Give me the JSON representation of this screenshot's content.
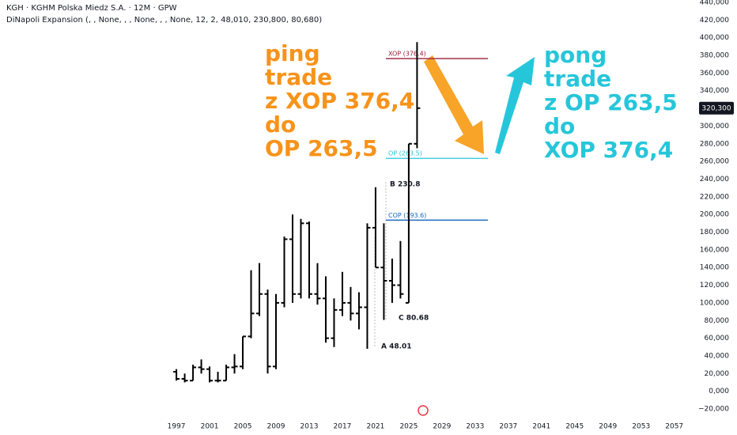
{
  "header": {
    "symbol_line": "KGH · KGHM Polska Miedz S.A. · 12M · GPW",
    "indicator_line": "DiNapoli Expansion (, , None, , , None, , , None, 12, 2, 48,010, 230,800, 80,680)"
  },
  "chart_data": {
    "type": "ohlc",
    "color": "#000000",
    "x": [
      1997,
      1998,
      1999,
      2000,
      2001,
      2002,
      2003,
      2004,
      2005,
      2006,
      2007,
      2008,
      2009,
      2010,
      2011,
      2012,
      2013,
      2014,
      2015,
      2016,
      2017,
      2018,
      2019,
      2020,
      2021,
      2022,
      2023,
      2024,
      2025,
      2026
    ],
    "open": [
      22000,
      14000,
      12000,
      27000,
      25000,
      12000,
      12000,
      27000,
      28000,
      62000,
      88000,
      110000,
      28000,
      100000,
      172000,
      110000,
      190000,
      110000,
      105000,
      60000,
      92000,
      100000,
      88000,
      95000,
      185000,
      140000,
      125000,
      120000,
      100000,
      280000
    ],
    "high": [
      25000,
      20000,
      30000,
      36000,
      28000,
      22000,
      30000,
      42000,
      62000,
      137000,
      145000,
      115000,
      110000,
      175000,
      200000,
      195000,
      192000,
      145000,
      130000,
      105000,
      135000,
      118000,
      112000,
      190000,
      230800,
      190000,
      150000,
      170000,
      280000,
      395000
    ],
    "low": [
      12000,
      10000,
      12000,
      20000,
      10000,
      10000,
      12000,
      20000,
      25000,
      60000,
      85000,
      20000,
      25000,
      95000,
      100000,
      105000,
      105000,
      98000,
      55000,
      50000,
      85000,
      80000,
      70000,
      48010,
      140000,
      80680,
      100000,
      105000,
      100000,
      275000
    ],
    "close": [
      14000,
      12000,
      27000,
      25000,
      12000,
      12000,
      27000,
      28000,
      62000,
      88000,
      110000,
      28000,
      100000,
      172000,
      110000,
      190000,
      110000,
      105000,
      60000,
      92000,
      100000,
      88000,
      95000,
      185000,
      140000,
      125000,
      120000,
      110000,
      280000,
      320300
    ],
    "xlim": [
      1994.8,
      2059.6
    ],
    "xticks": [
      1997,
      2001,
      2005,
      2009,
      2013,
      2017,
      2021,
      2025,
      2029,
      2033,
      2037,
      2041,
      2045,
      2049,
      2053,
      2057
    ],
    "ylim": [
      -20000,
      440000
    ],
    "yticks": [
      {
        "value": -20000,
        "label": "−20,000"
      },
      {
        "value": 0,
        "label": "0,000"
      },
      {
        "value": 20000,
        "label": "20,000"
      },
      {
        "value": 40000,
        "label": "40,000"
      },
      {
        "value": 60000,
        "label": "60,000"
      },
      {
        "value": 80000,
        "label": "80,000"
      },
      {
        "value": 100000,
        "label": "100,000"
      },
      {
        "value": 120000,
        "label": "120,000"
      },
      {
        "value": 140000,
        "label": "140,000"
      },
      {
        "value": 160000,
        "label": "160,000"
      },
      {
        "value": 180000,
        "label": "180,000"
      },
      {
        "value": 200000,
        "label": "200,000"
      },
      {
        "value": 220000,
        "label": "220,000"
      },
      {
        "value": 240000,
        "label": "240,000"
      },
      {
        "value": 260000,
        "label": "260,000"
      },
      {
        "value": 280000,
        "label": "280,000"
      },
      {
        "value": 300000,
        "label": "300,000"
      },
      {
        "value": 320000,
        "label": "320,000"
      },
      {
        "value": 340000,
        "label": "340,000"
      },
      {
        "value": 360000,
        "label": "360,000"
      },
      {
        "value": 380000,
        "label": "380,000"
      },
      {
        "value": 400000,
        "label": "400,000"
      },
      {
        "value": 420000,
        "label": "420,000"
      },
      {
        "value": 440000,
        "label": "440,000"
      }
    ],
    "last_price": {
      "value": 320300,
      "label": "320,300"
    },
    "levels": [
      {
        "label": "XOP (376.4)",
        "value": 376400,
        "color": "#9c1f3a"
      },
      {
        "label": "OP (263.5)",
        "value": 263500,
        "color": "#26c6da"
      },
      {
        "label": "COP (193.6)",
        "value": 193600,
        "color": "#1565c0"
      }
    ],
    "point_labels": [
      "B 230.8",
      "A 48.01",
      "C 80.68"
    ],
    "notes": [
      {
        "lines": [
          "ping",
          "trade",
          "z XOP 376,4",
          "do",
          "OP 263,5"
        ],
        "color": "#f7931a"
      },
      {
        "lines": [
          "pong",
          "trade",
          "z OP 263,5",
          "do",
          "XOP 376,4"
        ],
        "color": "#26c6da"
      }
    ]
  }
}
